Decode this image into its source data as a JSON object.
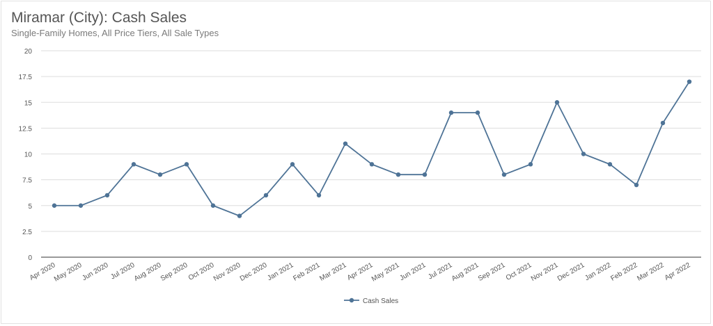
{
  "title": "Miramar (City): Cash Sales",
  "subtitle": "Single-Family Homes, All Price Tiers, All Sale Types",
  "chart_data": {
    "type": "line",
    "title": "Miramar (City): Cash Sales",
    "subtitle": "Single-Family Homes, All Price Tiers, All Sale Types",
    "categories": [
      "Apr 2020",
      "May 2020",
      "Jun 2020",
      "Jul 2020",
      "Aug 2020",
      "Sep 2020",
      "Oct 2020",
      "Nov 2020",
      "Dec 2020",
      "Jan 2021",
      "Feb 2021",
      "Mar 2021",
      "Apr 2021",
      "May 2021",
      "Jun 2021",
      "Jul 2021",
      "Aug 2021",
      "Sep 2021",
      "Oct 2021",
      "Nov 2021",
      "Dec 2021",
      "Jan 2022",
      "Feb 2022",
      "Mar 2022",
      "Apr 2022"
    ],
    "series": [
      {
        "name": "Cash Sales",
        "color": "#4e7396",
        "values": [
          5,
          5,
          6,
          9,
          8,
          9,
          5,
          4,
          6,
          9,
          6,
          11,
          9,
          8,
          8,
          14,
          14,
          8,
          9,
          15,
          10,
          9,
          7,
          13,
          17
        ]
      }
    ],
    "yticks": [
      "0",
      "2.5",
      "5",
      "7.5",
      "10",
      "12.5",
      "15",
      "17.5",
      "20"
    ],
    "ylim": [
      0,
      20
    ],
    "grid": true,
    "legend_position": "bottom-center",
    "xlabel": "",
    "ylabel": ""
  }
}
